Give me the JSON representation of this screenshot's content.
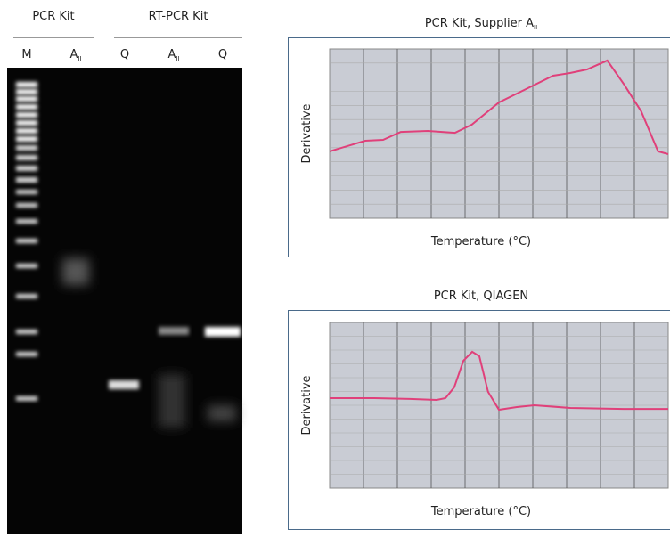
{
  "gel": {
    "groups": [
      "PCR Kit",
      "RT-PCR Kit"
    ],
    "lanes": [
      {
        "text": "M"
      },
      {
        "text": "A",
        "sub": "II"
      },
      {
        "text": "Q"
      },
      {
        "text": "A",
        "sub": "II"
      },
      {
        "text": "Q"
      }
    ]
  },
  "plots": [
    {
      "title": "PCR Kit, Supplier A",
      "title_sub": "II",
      "y_label": "Derivative",
      "x_label": "Temperature (°C)",
      "x": [
        0,
        10.5,
        15.8,
        21,
        29,
        37,
        42,
        50,
        58,
        66,
        71,
        76,
        82,
        87,
        92,
        97,
        100
      ],
      "y": [
        39.5,
        45.8,
        46.3,
        51,
        51.6,
        50.5,
        55.3,
        68.4,
        76.3,
        84.2,
        85.8,
        87.9,
        93.2,
        78.9,
        63.2,
        39.5,
        37.9
      ]
    },
    {
      "title": "PCR Kit, QIAGEN",
      "y_label": "Derivative",
      "x_label": "Temperature (°C)",
      "x": [
        0,
        13.2,
        23.7,
        31.6,
        34.2,
        36.8,
        39.5,
        42.1,
        44.2,
        46.8,
        50,
        55.3,
        60.5,
        71.1,
        86.8,
        100
      ],
      "y": [
        54.3,
        54.3,
        53.8,
        53.2,
        54.3,
        60.8,
        76.9,
        82.3,
        79.6,
        58.1,
        47.3,
        48.9,
        50,
        48.4,
        47.8,
        47.8
      ]
    }
  ]
}
